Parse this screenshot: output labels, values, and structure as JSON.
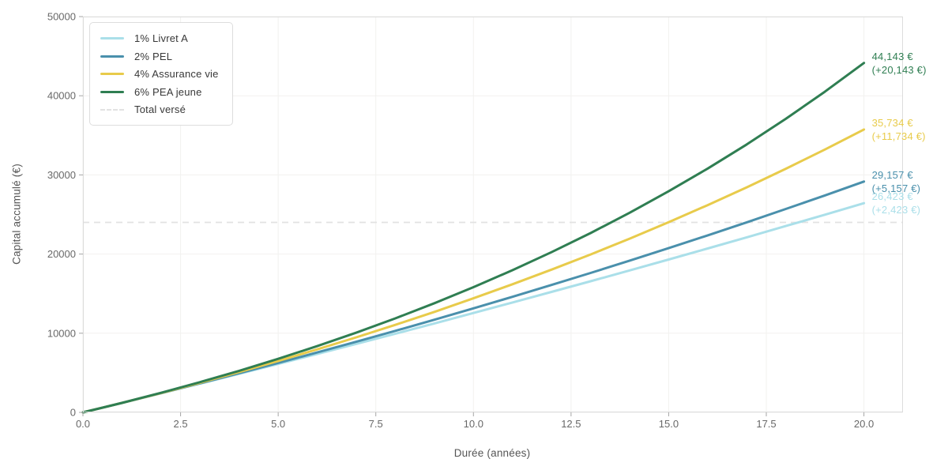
{
  "figure": {
    "background": "#ffffff",
    "plot_background": "#ffffff",
    "grid_color": "#f2f1ef",
    "spine_color": "#dcdcdc",
    "tick_color": "#a6a6a6",
    "tick_label_color": "#686868",
    "axis_label_color": "#555555",
    "legend_text_color": "#383838",
    "legend_border_color": "#dddddd"
  },
  "chart_data": {
    "type": "line",
    "title": "",
    "xlabel": "Durée (années)",
    "ylabel": "Capital accumulé (€)",
    "xlim": [
      0,
      21
    ],
    "ylim": [
      0,
      50000
    ],
    "grid": true,
    "legend_position": "upper-left",
    "xtick_values": [
      0,
      2.5,
      5,
      7.5,
      10,
      12.5,
      15,
      17.5,
      20
    ],
    "xtick_labels": [
      "0.0",
      "2.5",
      "5.0",
      "7.5",
      "10.0",
      "12.5",
      "15.0",
      "17.5",
      "20.0"
    ],
    "ytick_values": [
      0,
      10000,
      20000,
      30000,
      40000,
      50000
    ],
    "ytick_labels": [
      "0",
      "10000",
      "20000",
      "30000",
      "40000",
      "50000"
    ],
    "x": [
      0,
      1,
      2,
      3,
      4,
      5,
      6,
      7,
      8,
      9,
      10,
      11,
      12,
      13,
      14,
      15,
      16,
      17,
      18,
      19,
      20
    ],
    "series": [
      {
        "name": "1% Livret A",
        "color": "#aadfe9",
        "values": [
          0,
          1200,
          2412,
          3636,
          4872,
          6121,
          7382,
          8656,
          9943,
          11242,
          12555,
          13880,
          15219,
          16571,
          17937,
          19316,
          20709,
          22117,
          23538,
          24973,
          26423
        ],
        "end_value_label": "26,423 €",
        "gain_label": "(+2,423 €)"
      },
      {
        "name": "2% PEL",
        "color": "#4a90ac",
        "values": [
          0,
          1200,
          2424,
          3672,
          4946,
          6245,
          7570,
          8921,
          10300,
          11706,
          13140,
          14602,
          16095,
          17616,
          19169,
          20752,
          22367,
          24014,
          25695,
          27409,
          29157
        ],
        "end_value_label": "29,157 €",
        "gain_label": "(+5,157 €)"
      },
      {
        "name": "4% Assurance vie",
        "color": "#e8cb4b",
        "values": [
          0,
          1200,
          2448,
          3746,
          5096,
          6500,
          7960,
          9478,
          11057,
          12699,
          14407,
          16184,
          18031,
          19952,
          21950,
          24028,
          26189,
          28437,
          30775,
          33205,
          35734
        ],
        "end_value_label": "35,734 €",
        "gain_label": "(+11,734 €)"
      },
      {
        "name": "6% PEA jeune",
        "color": "#2f7e52",
        "values": [
          0,
          1200,
          2472,
          3820,
          5250,
          6765,
          8370,
          10073,
          11877,
          13790,
          15817,
          17966,
          20244,
          22659,
          25218,
          27931,
          30806,
          33853,
          37085,
          40510,
          44143
        ],
        "end_value_label": "44,143 €",
        "gain_label": "(+20,143 €)"
      }
    ],
    "reference_line": {
      "name": "Total versé",
      "value": 24000,
      "color": "#e2e2e2",
      "style": "dashed"
    }
  }
}
